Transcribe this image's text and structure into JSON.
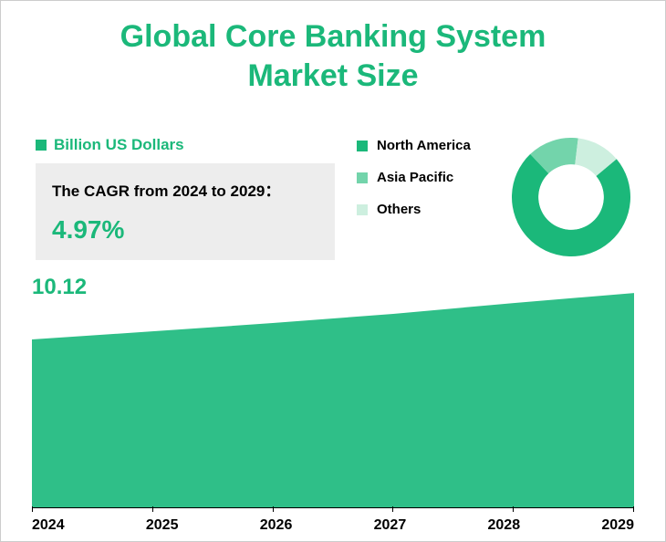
{
  "title": {
    "line1": "Global  Core Banking System",
    "line2": "Market Size",
    "color": "#1bb87a",
    "fontsize": 34
  },
  "axis_legend": {
    "label": "Billion US Dollars",
    "marker_color": "#1bb87a",
    "text_color": "#1bb87a",
    "fontsize": 17
  },
  "cagr": {
    "text": "The CAGR from 2024 to 2029：",
    "value": "4.97%",
    "text_fontsize": 17,
    "value_fontsize": 28,
    "value_color": "#1bb87a",
    "box_bg": "#ededed"
  },
  "donut": {
    "legend_fontsize": 15,
    "items": [
      {
        "label": "North America",
        "color": "#1bb87a",
        "fraction": 0.74
      },
      {
        "label": "Asia Pacific",
        "color": "#73d4ab",
        "fraction": 0.14
      },
      {
        "label": "Others",
        "color": "#cdefdf",
        "fraction": 0.12
      }
    ],
    "inner_radius_ratio": 0.55,
    "bg": "#ffffff",
    "start_angle_deg": -40
  },
  "area_chart": {
    "type": "area",
    "fill_color": "#2fbf88",
    "value_label": "10.12",
    "value_label_color": "#1bb87a",
    "value_label_fontsize": 24,
    "x_labels": [
      "2024",
      "2025",
      "2026",
      "2027",
      "2028",
      "2029"
    ],
    "x_fontsize": 16,
    "ylim": [
      0,
      14
    ],
    "points": [
      {
        "x": 0,
        "y": 10.12
      },
      {
        "x": 1,
        "y": 10.6
      },
      {
        "x": 2,
        "y": 11.1
      },
      {
        "x": 3,
        "y": 11.65
      },
      {
        "x": 4,
        "y": 12.3
      },
      {
        "x": 5,
        "y": 12.9
      }
    ]
  },
  "frame": {
    "border_color": "#cccccc",
    "bg": "#ffffff"
  }
}
